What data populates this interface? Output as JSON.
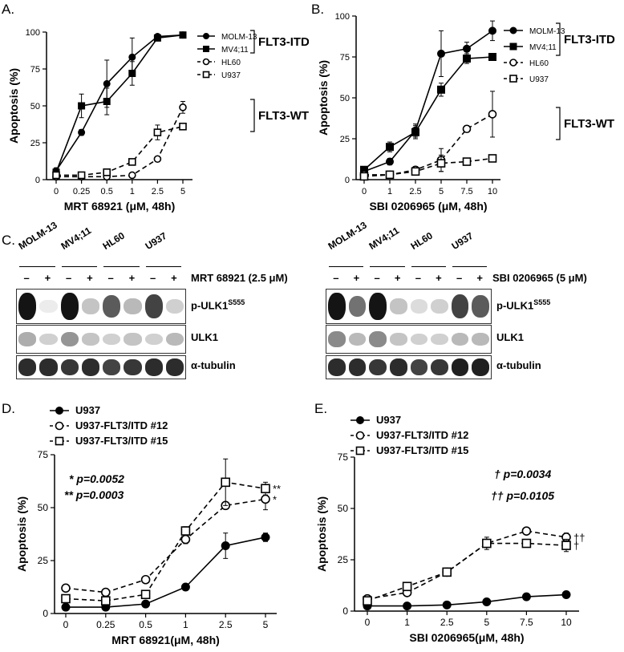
{
  "chart_data": [
    {
      "panel": "A.",
      "type": "line",
      "xlabel": "MRT 68921  (μM, 48h)",
      "ylabel": "Apoptosis (%)",
      "categories": [
        "0",
        "0.25",
        "0.5",
        "1",
        "2.5",
        "5"
      ],
      "ylim": [
        0,
        100
      ],
      "yticks": [
        "0",
        "25",
        "50",
        "75",
        "100"
      ],
      "series": [
        {
          "name": "MOLM-13",
          "values": [
            6,
            32,
            65,
            83,
            97,
            98
          ],
          "err": [
            2,
            2,
            16,
            13,
            1,
            1
          ],
          "marker": "circle-filled",
          "dashed": false
        },
        {
          "name": "MV4;11",
          "values": [
            5,
            50,
            53,
            72,
            96,
            98
          ],
          "err": [
            2,
            8,
            9,
            8,
            1,
            1
          ],
          "marker": "square-filled",
          "dashed": false
        },
        {
          "name": "HL60",
          "values": [
            2,
            2,
            2,
            3,
            14,
            49
          ],
          "err": [
            1,
            1,
            1,
            1,
            1,
            4
          ],
          "marker": "circle-open",
          "dashed": true
        },
        {
          "name": "U937",
          "values": [
            3,
            3,
            5,
            12,
            32,
            36
          ],
          "err": [
            1,
            1,
            1,
            1,
            5,
            2
          ],
          "marker": "square-open",
          "dashed": true
        }
      ],
      "groups": [
        {
          "label": "FLT3-ITD",
          "members": [
            "MOLM-13",
            "MV4;11"
          ]
        },
        {
          "label": "FLT3-WT",
          "members": [
            "HL60",
            "U937"
          ]
        }
      ]
    },
    {
      "panel": "B.",
      "type": "line",
      "xlabel": "SBI 0206965  (μM, 48h)",
      "ylabel": "Apoptosis (%)",
      "categories": [
        "0",
        "1",
        "2.5",
        "5",
        "7.5",
        "10"
      ],
      "ylim": [
        0,
        100
      ],
      "yticks": [
        "0",
        "25",
        "50",
        "75",
        "100"
      ],
      "series": [
        {
          "name": "MOLM-13",
          "values": [
            5,
            11,
            30,
            77,
            80,
            91
          ],
          "err": [
            2,
            2,
            4,
            14,
            4,
            6
          ],
          "marker": "circle-filled",
          "dashed": false
        },
        {
          "name": "MV4;11",
          "values": [
            6,
            20,
            29,
            55,
            74,
            75
          ],
          "err": [
            2,
            3,
            4,
            4,
            3,
            2
          ],
          "marker": "square-filled",
          "dashed": false
        },
        {
          "name": "HL60",
          "values": [
            3,
            3,
            6,
            12,
            31,
            40
          ],
          "err": [
            1,
            1,
            2,
            7,
            2,
            14
          ],
          "marker": "circle-open",
          "dashed": true
        },
        {
          "name": "U937",
          "values": [
            2,
            3,
            5,
            10,
            11,
            13
          ],
          "err": [
            1,
            1,
            1,
            5,
            2,
            2
          ],
          "marker": "square-open",
          "dashed": true
        }
      ],
      "groups": [
        {
          "label": "FLT3-ITD",
          "members": [
            "MOLM-13",
            "MV4;11"
          ]
        },
        {
          "label": "FLT3-WT",
          "members": [
            "HL60",
            "U937"
          ]
        }
      ]
    },
    {
      "panel": "D.",
      "type": "line",
      "xlabel": "MRT 68921(μM, 48h)",
      "ylabel": "Apoptosis (%)",
      "categories": [
        "0",
        "0.25",
        "0.5",
        "1",
        "2.5",
        "5"
      ],
      "ylim": [
        0,
        75
      ],
      "yticks": [
        "0",
        "25",
        "50",
        "75"
      ],
      "series": [
        {
          "name": "U937",
          "values": [
            3,
            3,
            4.5,
            12.5,
            32,
            36
          ],
          "err": [
            1,
            1,
            1,
            1,
            6,
            2
          ],
          "marker": "circle-filled",
          "dashed": false
        },
        {
          "name": "U937-FLT3/ITD #12",
          "values": [
            12,
            10,
            16,
            35,
            51,
            54
          ],
          "err": [
            1,
            1,
            1,
            2,
            1,
            5
          ],
          "marker": "circle-open",
          "dashed": true,
          "end_mark": "*"
        },
        {
          "name": "U937-FLT3/ITD #15",
          "values": [
            7,
            6,
            9,
            39,
            62,
            59
          ],
          "err": [
            1,
            1,
            1,
            2,
            11,
            3
          ],
          "marker": "square-open",
          "dashed": true,
          "end_mark": "**"
        }
      ],
      "annotations": [
        "* p=0.0052",
        "** p=0.0003"
      ]
    },
    {
      "panel": "E.",
      "type": "line",
      "xlabel": "SBI 0206965(μM, 48h)",
      "ylabel": "Apoptosis (%)",
      "categories": [
        "0",
        "1",
        "2.5",
        "5",
        "7.5",
        "10"
      ],
      "ylim": [
        0,
        75
      ],
      "yticks": [
        "0",
        "25",
        "50",
        "75"
      ],
      "series": [
        {
          "name": "U937",
          "values": [
            2.5,
            2.5,
            3,
            4.5,
            7,
            8
          ],
          "err": [
            0.5,
            0.5,
            0.5,
            0.5,
            0.5,
            0.5
          ],
          "marker": "circle-filled",
          "dashed": false
        },
        {
          "name": "U937-FLT3/ITD #12",
          "values": [
            6,
            9,
            19,
            33,
            39,
            36
          ],
          "err": [
            1,
            1,
            1,
            2,
            1,
            2
          ],
          "marker": "circle-open",
          "dashed": true,
          "end_mark": "††"
        },
        {
          "name": "U937-FLT3/ITD #15",
          "values": [
            5,
            12,
            19,
            33,
            33,
            32
          ],
          "err": [
            1,
            1,
            1,
            3,
            1,
            3
          ],
          "marker": "square-open",
          "dashed": true,
          "end_mark": "†"
        }
      ],
      "annotations": [
        "† p=0.0034",
        "†† p=0.0105"
      ]
    }
  ],
  "panel_c": {
    "label": "C.",
    "blots": [
      {
        "lanes": [
          "MOLM-13",
          "MV4;11",
          "HL60",
          "U937"
        ],
        "minus": "–",
        "plus": "+",
        "treatment": "MRT 68921 (2.5 μM)",
        "rows": [
          {
            "label": "p-ULK1",
            "sup": "S555",
            "intensity": [
              1.0,
              0.08,
              1.0,
              0.25,
              0.7,
              0.3,
              0.8,
              0.2
            ]
          },
          {
            "label": "ULK1",
            "sup": "",
            "intensity": [
              0.35,
              0.2,
              0.45,
              0.25,
              0.2,
              0.25,
              0.2,
              0.3
            ]
          },
          {
            "label": "α-tubulin",
            "sup": "",
            "intensity": [
              0.9,
              0.9,
              0.85,
              0.9,
              0.8,
              0.85,
              0.9,
              0.9
            ]
          }
        ]
      },
      {
        "lanes": [
          "MOLM-13",
          "MV4;11",
          "HL60",
          "U937"
        ],
        "minus": "–",
        "plus": "+",
        "treatment": "SBI 0206965 (5 μM)",
        "rows": [
          {
            "label": "p-ULK1",
            "sup": "S555",
            "intensity": [
              1.0,
              0.6,
              1.0,
              0.25,
              0.15,
              0.2,
              0.8,
              0.7
            ]
          },
          {
            "label": "ULK1",
            "sup": "",
            "intensity": [
              0.5,
              0.3,
              0.5,
              0.25,
              0.2,
              0.2,
              0.3,
              0.3
            ]
          },
          {
            "label": "α-tubulin",
            "sup": "",
            "intensity": [
              0.9,
              0.9,
              0.85,
              0.9,
              0.8,
              0.85,
              0.95,
              0.95
            ]
          }
        ]
      }
    ]
  }
}
